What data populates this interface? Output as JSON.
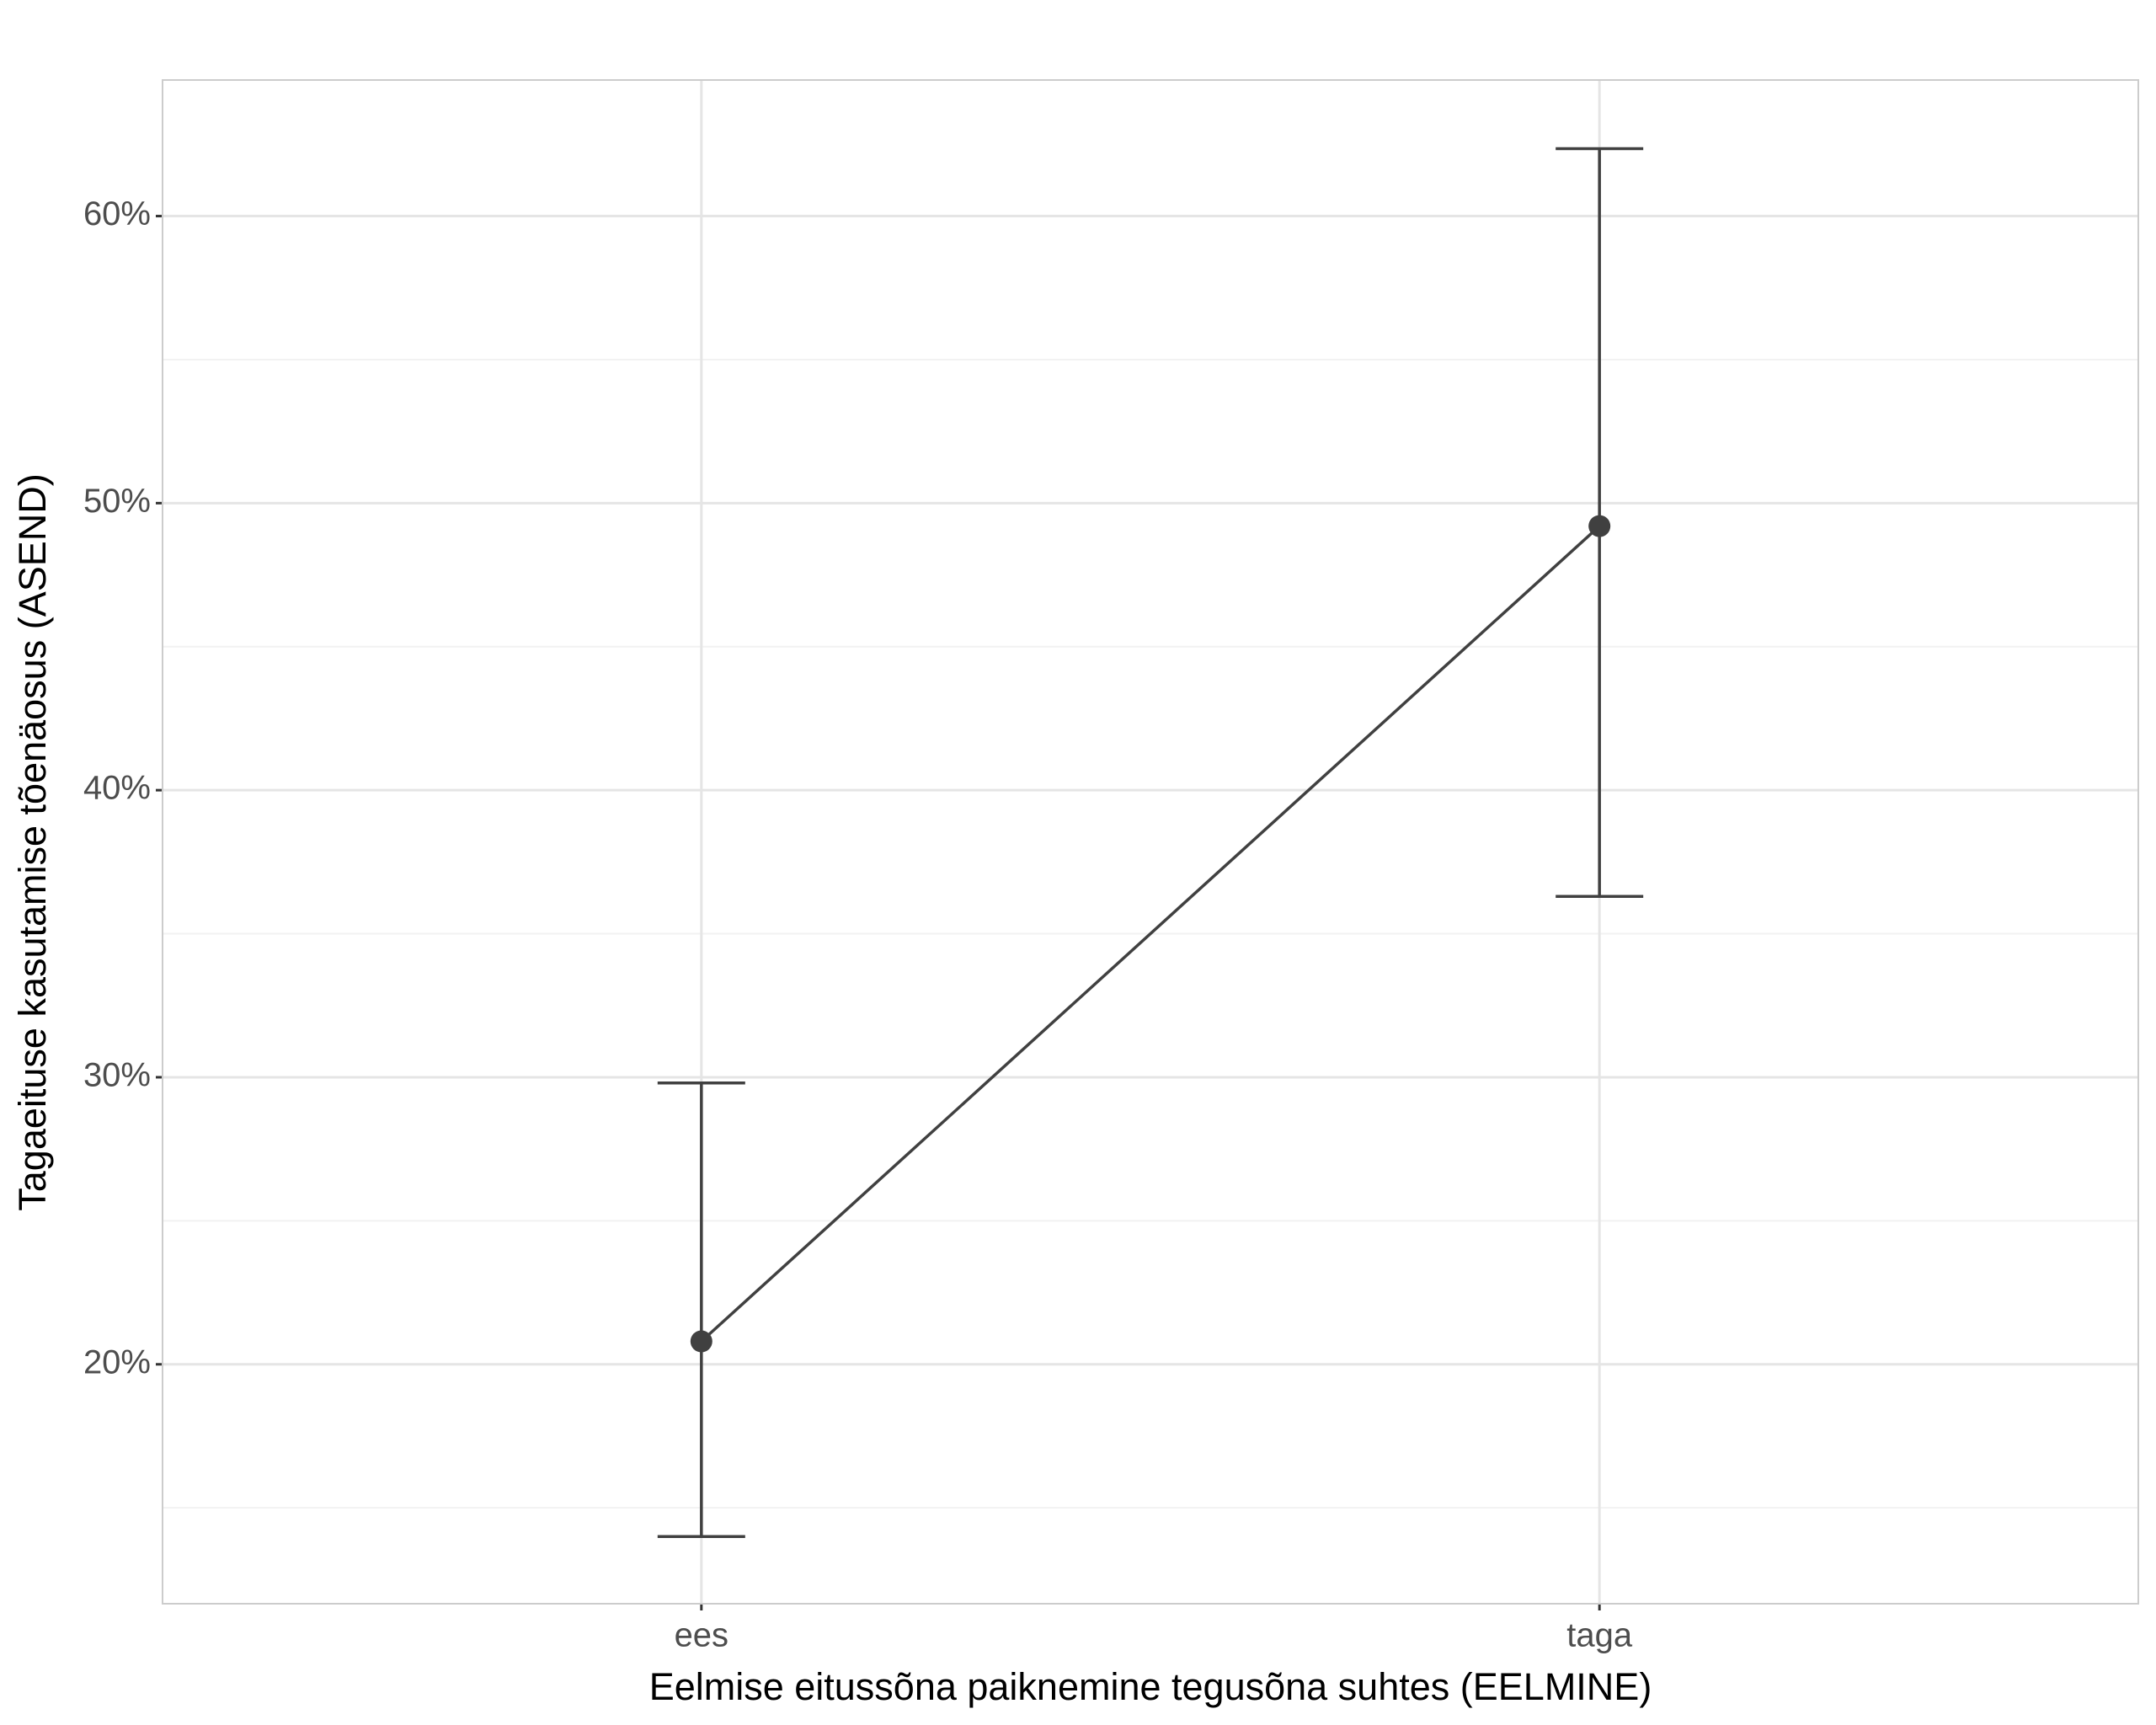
{
  "chart_data": {
    "type": "line-errorbar",
    "x_label": "Eelmise eitussõna paiknemine tegusõna suhtes (EELMINE)",
    "y_label": "Tagaeituse kasutamise tõenäosus (ASEND)",
    "categories": [
      "ees",
      "taga"
    ],
    "series": [
      {
        "color": "#404040",
        "values": [
          20.8,
          49.2
        ],
        "lower": [
          14.0,
          36.3
        ],
        "upper": [
          29.8,
          62.35
        ]
      }
    ],
    "ylim": [
      11.66,
      64.74
    ],
    "yticks": [
      {
        "value": 20,
        "label": "20%"
      },
      {
        "value": 30,
        "label": "30%"
      },
      {
        "value": 40,
        "label": "40%"
      },
      {
        "value": 50,
        "label": "50%"
      },
      {
        "value": 60,
        "label": "60%"
      }
    ],
    "minor_yticks": [
      15,
      25,
      35,
      45,
      55
    ],
    "grid": true
  }
}
